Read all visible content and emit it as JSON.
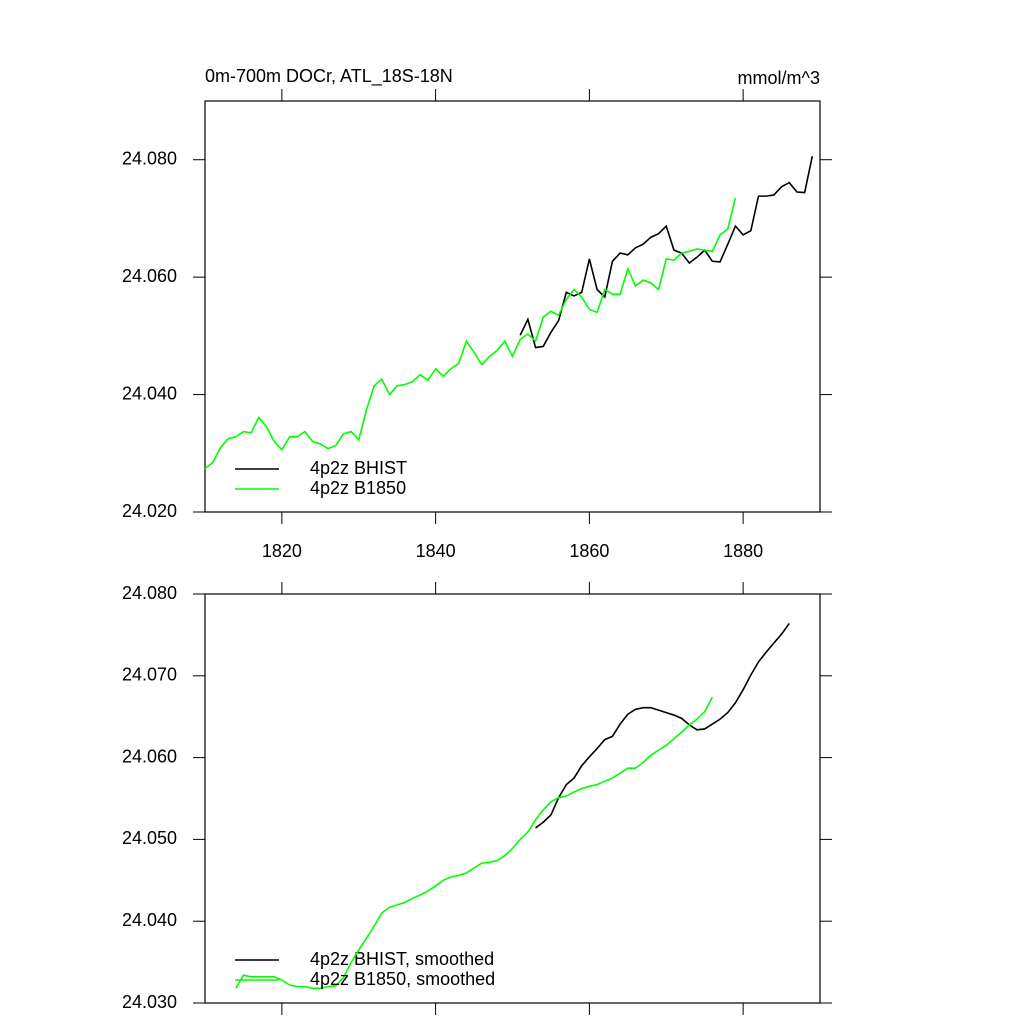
{
  "chart_data": [
    {
      "type": "line",
      "title": "0m-700m DOCr, ATL_18S-18N",
      "units_label": "mmol/m^3",
      "x": [
        1810,
        1811,
        1812,
        1813,
        1814,
        1815,
        1816,
        1817,
        1818,
        1819,
        1820,
        1821,
        1822,
        1823,
        1824,
        1825,
        1826,
        1827,
        1828,
        1829,
        1830,
        1831,
        1832,
        1833,
        1834,
        1835,
        1836,
        1837,
        1838,
        1839,
        1840,
        1841,
        1842,
        1843,
        1844,
        1845,
        1846,
        1847,
        1848,
        1849,
        1850,
        1851,
        1852,
        1853,
        1854,
        1855,
        1856,
        1857,
        1858,
        1859,
        1860,
        1861,
        1862,
        1863,
        1864,
        1865,
        1866,
        1867,
        1868,
        1869,
        1870,
        1871,
        1872,
        1873,
        1874,
        1875,
        1876,
        1877,
        1878,
        1879,
        1880,
        1881,
        1882,
        1883,
        1884,
        1885,
        1886,
        1887,
        1888,
        1889
      ],
      "series": [
        {
          "name": "4p2z BHIST",
          "color": "#000000",
          "values": [
            null,
            null,
            null,
            null,
            null,
            null,
            null,
            null,
            null,
            null,
            null,
            null,
            null,
            null,
            null,
            null,
            null,
            null,
            null,
            null,
            null,
            null,
            null,
            null,
            null,
            null,
            null,
            null,
            null,
            null,
            null,
            null,
            null,
            null,
            null,
            null,
            null,
            null,
            null,
            null,
            null,
            24.0501,
            24.0528,
            24.048,
            24.0482,
            24.0506,
            24.0526,
            24.0574,
            24.0568,
            24.0574,
            24.0631,
            24.0579,
            24.0566,
            24.0627,
            24.0641,
            24.0638,
            24.065,
            24.0656,
            24.0668,
            24.0674,
            24.0687,
            24.0646,
            24.0641,
            24.0624,
            24.0634,
            24.0646,
            24.0627,
            24.0626,
            24.0656,
            24.0687,
            24.0672,
            24.0679,
            24.0738,
            24.0738,
            24.074,
            24.0754,
            24.0761,
            24.0745,
            24.0744,
            24.0806
          ]
        },
        {
          "name": "4p2z B1850",
          "color": "#00ff00",
          "values": [
            24.0274,
            24.0284,
            24.0309,
            24.0325,
            24.0328,
            24.0337,
            24.0335,
            24.0361,
            24.0345,
            24.032,
            24.0306,
            24.0328,
            24.0328,
            24.0337,
            24.032,
            24.0316,
            24.0308,
            24.0313,
            24.0333,
            24.0337,
            24.0323,
            24.0374,
            24.0415,
            24.0426,
            24.04,
            24.0415,
            24.0417,
            24.0422,
            24.0434,
            24.0424,
            24.0444,
            24.0431,
            24.0444,
            24.0453,
            24.0491,
            24.0472,
            24.0451,
            24.0465,
            24.0475,
            24.0491,
            24.0465,
            24.0494,
            24.0503,
            24.0491,
            24.0532,
            24.0542,
            24.0535,
            24.0562,
            24.0579,
            24.0566,
            24.0545,
            24.054,
            24.0579,
            24.0571,
            24.0571,
            24.0614,
            24.0585,
            24.0595,
            24.059,
            24.0579,
            24.0631,
            24.0629,
            24.0641,
            24.0644,
            24.0648,
            24.0646,
            24.0644,
            24.0672,
            24.0682,
            24.0735,
            null,
            null,
            null,
            null,
            null,
            null,
            null,
            null,
            null,
            null
          ]
        }
      ],
      "xlim": [
        1810,
        1890
      ],
      "xticks": [
        1820,
        1840,
        1860,
        1880
      ],
      "xtick_labels": true,
      "ylim": [
        24.02,
        24.09
      ],
      "yticks": [
        {
          "value": 24.02,
          "label": "24.020"
        },
        {
          "value": 24.04,
          "label": "24.040"
        },
        {
          "value": 24.06,
          "label": "24.060"
        },
        {
          "value": 24.08,
          "label": "24.080"
        }
      ],
      "legend": "lower left",
      "grid": false
    },
    {
      "type": "line",
      "x": [
        1814,
        1815,
        1816,
        1817,
        1818,
        1819,
        1820,
        1821,
        1822,
        1823,
        1824,
        1825,
        1826,
        1827,
        1828,
        1829,
        1830,
        1831,
        1832,
        1833,
        1834,
        1835,
        1836,
        1837,
        1838,
        1839,
        1840,
        1841,
        1842,
        1843,
        1844,
        1845,
        1846,
        1847,
        1848,
        1849,
        1850,
        1851,
        1852,
        1853,
        1854,
        1855,
        1856,
        1857,
        1858,
        1859,
        1860,
        1861,
        1862,
        1863,
        1864,
        1865,
        1866,
        1867,
        1868,
        1869,
        1870,
        1871,
        1872,
        1873,
        1874,
        1875,
        1876,
        1877,
        1878,
        1879,
        1880,
        1881,
        1882,
        1883,
        1884,
        1885,
        1886
      ],
      "series": [
        {
          "name": "4p2z BHIST, smoothed",
          "color": "#000000",
          "values": [
            null,
            null,
            null,
            null,
            null,
            null,
            null,
            null,
            null,
            null,
            null,
            null,
            null,
            null,
            null,
            null,
            null,
            null,
            null,
            null,
            null,
            null,
            null,
            null,
            null,
            null,
            null,
            null,
            null,
            null,
            null,
            null,
            null,
            null,
            null,
            null,
            null,
            null,
            null,
            24.0514,
            24.0521,
            24.053,
            24.0551,
            24.0567,
            24.0575,
            24.059,
            24.0601,
            24.0611,
            24.0622,
            24.0626,
            24.0641,
            24.0653,
            24.0659,
            24.0661,
            24.0661,
            24.0658,
            24.0655,
            24.0652,
            24.0648,
            24.064,
            24.0634,
            24.0635,
            24.0641,
            24.0647,
            24.0655,
            24.0667,
            24.0683,
            24.0701,
            24.0717,
            24.0729,
            24.074,
            24.0751,
            24.0764
          ]
        },
        {
          "name": "4p2z B1850, smoothed",
          "color": "#00ff00",
          "values": [
            24.0318,
            24.0334,
            24.0332,
            24.0332,
            24.0332,
            24.0332,
            24.0328,
            24.0322,
            24.032,
            24.032,
            24.0318,
            24.0318,
            24.032,
            24.0321,
            24.0331,
            24.0349,
            24.0365,
            24.0379,
            24.0394,
            24.041,
            24.0417,
            24.042,
            24.0423,
            24.0428,
            24.0432,
            24.0437,
            24.0443,
            24.045,
            24.0454,
            24.0456,
            24.0459,
            24.0465,
            24.0471,
            24.0472,
            24.0474,
            24.048,
            24.0489,
            24.05,
            24.0509,
            24.0524,
            24.0536,
            24.0546,
            24.0551,
            24.0553,
            24.0558,
            24.0562,
            24.0565,
            24.0567,
            24.0571,
            24.0575,
            24.0581,
            24.0587,
            24.0587,
            24.0594,
            24.0603,
            24.0609,
            24.0615,
            24.0623,
            24.0631,
            24.064,
            24.0647,
            24.0656,
            24.0674,
            null,
            null,
            null,
            null,
            null,
            null,
            null,
            null,
            null,
            null
          ]
        }
      ],
      "xlim": [
        1810,
        1890
      ],
      "xticks": [
        1820,
        1840,
        1860,
        1880
      ],
      "xtick_labels": false,
      "ylim": [
        24.03,
        24.08
      ],
      "yticks": [
        {
          "value": 24.03,
          "label": "24.030"
        },
        {
          "value": 24.04,
          "label": "24.040"
        },
        {
          "value": 24.05,
          "label": "24.050"
        },
        {
          "value": 24.06,
          "label": "24.060"
        },
        {
          "value": 24.07,
          "label": "24.070"
        },
        {
          "value": 24.08,
          "label": "24.080"
        }
      ],
      "legend": "lower left",
      "grid": false
    }
  ]
}
